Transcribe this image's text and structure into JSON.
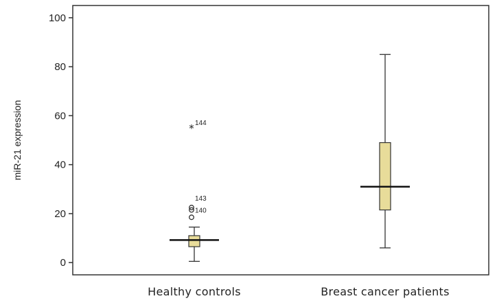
{
  "chart_data": {
    "type": "box",
    "title": "",
    "ylabel": "miR-21 expression",
    "xlabel": "",
    "ylim": [
      -5,
      105
    ],
    "yticks": [
      0,
      20,
      40,
      60,
      80,
      100
    ],
    "grid": false,
    "box_fill": "#e8dc9a",
    "categories": [
      "Healthy controls",
      "Breast cancer patients"
    ],
    "boxes": [
      {
        "category": "Healthy controls",
        "whisker_low": 0.5,
        "q1": 6.5,
        "median": 9.2,
        "q3": 11,
        "whisker_high": 14.5,
        "outliers": [
          {
            "value": 55,
            "marker": "star",
            "label": "144"
          },
          {
            "value": 22.5,
            "marker": "circle",
            "label": "143"
          },
          {
            "value": 21.5,
            "marker": "circle",
            "label": "140"
          },
          {
            "value": 18.5,
            "marker": "circle",
            "label": ""
          }
        ]
      },
      {
        "category": "Breast cancer patients",
        "whisker_low": 6,
        "q1": 21.5,
        "median": 31,
        "q3": 49,
        "whisker_high": 85,
        "outliers": []
      }
    ]
  }
}
